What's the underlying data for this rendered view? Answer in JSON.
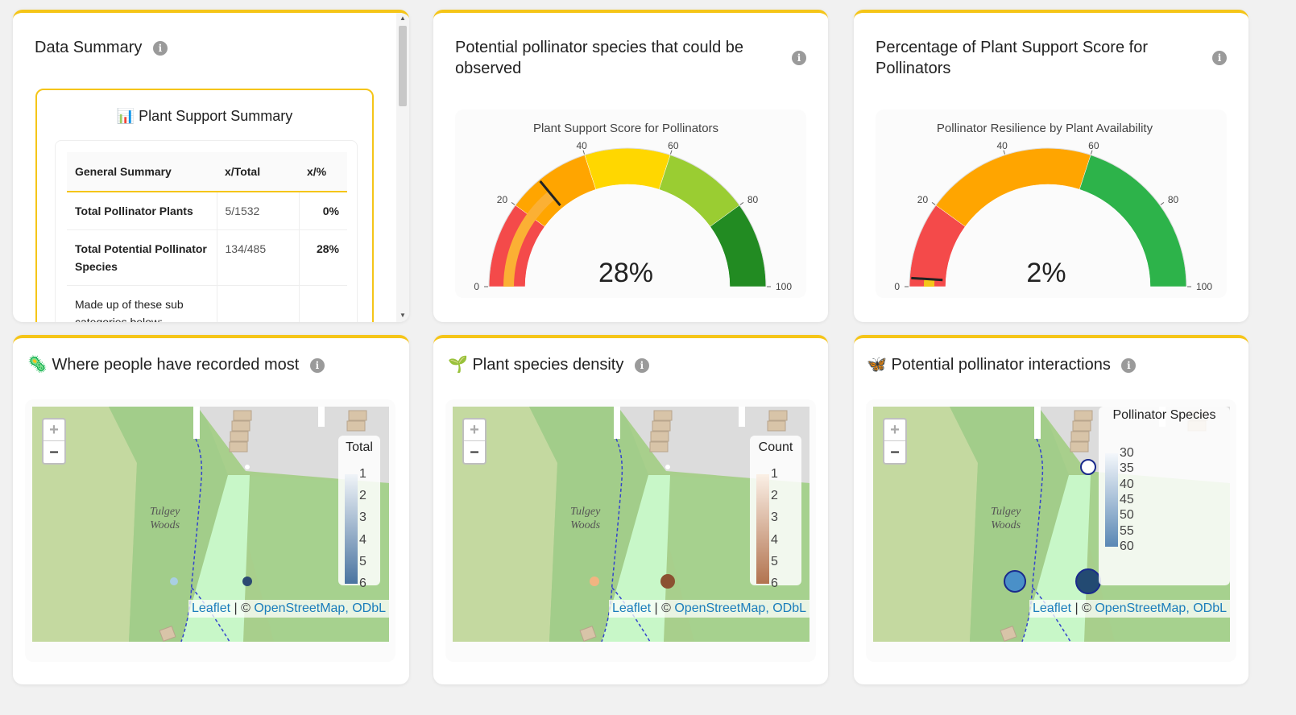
{
  "data_summary": {
    "title": "Data Summary",
    "info": "i",
    "box_title_icon": "📊",
    "box_title": "Plant Support Summary",
    "table": {
      "headers": [
        "General Summary",
        "x/Total",
        "x/%"
      ],
      "rows": [
        {
          "label": "Total Pollinator Plants",
          "frac": "5/1532",
          "pct": "0%"
        },
        {
          "label": "Total Potential Pollinator Species",
          "frac": "134/485",
          "pct": "28%"
        },
        {
          "label": "Made up of these sub categories below:",
          "frac": "",
          "pct": ""
        }
      ]
    }
  },
  "gauge1": {
    "card_title": "Potential pollinator species that could be observed",
    "info": "i",
    "chart_title": "Plant Support Score for Pollinators",
    "value_label": "28%",
    "ticks": [
      "0",
      "20",
      "40",
      "60",
      "80",
      "100"
    ]
  },
  "gauge2": {
    "card_title": "Percentage of Plant Support Score for Pollinators",
    "info": "i",
    "chart_title": "Pollinator Resilience by Plant Availability",
    "value_label": "2%",
    "ticks": [
      "0",
      "20",
      "40",
      "60",
      "80",
      "100"
    ]
  },
  "map1": {
    "title_icon": "🦠",
    "title": "Where people have recorded most",
    "info": "i",
    "legend_title": "Total",
    "legend_ticks": [
      "1",
      "2",
      "3",
      "4",
      "5",
      "6"
    ]
  },
  "map2": {
    "title_icon": "🌱",
    "title": "Plant species density",
    "info": "i",
    "legend_title": "Count",
    "legend_ticks": [
      "1",
      "2",
      "3",
      "4",
      "5",
      "6"
    ]
  },
  "map3": {
    "title_icon": "🦋",
    "title": "Potential pollinator interactions",
    "info": "i",
    "legend_title": "Pollinator Species",
    "legend_ticks": [
      "30",
      "35",
      "40",
      "45",
      "50",
      "55",
      "60"
    ]
  },
  "map_common": {
    "zoom_in": "+",
    "zoom_out": "–",
    "place_label_line1": "Tulgey",
    "place_label_line2": "Woods",
    "attrib_leaflet": "Leaflet",
    "attrib_sep": " | © ",
    "attrib_osm": "OpenStreetMap, ODbL"
  },
  "chart_data": [
    {
      "type": "gauge",
      "title": "Plant Support Score for Pollinators",
      "value": 28,
      "range": [
        0,
        100
      ],
      "bands": [
        {
          "from": 0,
          "to": 20,
          "color": "#f44a4a"
        },
        {
          "from": 20,
          "to": 40,
          "color": "#ffa500"
        },
        {
          "from": 40,
          "to": 60,
          "color": "#ffd700"
        },
        {
          "from": 60,
          "to": 80,
          "color": "#9acd32"
        },
        {
          "from": 80,
          "to": 100,
          "color": "#228b22"
        }
      ],
      "bar_color": "#fbb034"
    },
    {
      "type": "gauge",
      "title": "Pollinator Resilience by Plant Availability",
      "value": 2,
      "range": [
        0,
        100
      ],
      "bands": [
        {
          "from": 0,
          "to": 20,
          "color": "#f44a4a"
        },
        {
          "from": 20,
          "to": 60,
          "color": "#ffa500"
        },
        {
          "from": 60,
          "to": 100,
          "color": "#2db34a"
        }
      ],
      "bar_color": "#f5c518"
    }
  ]
}
